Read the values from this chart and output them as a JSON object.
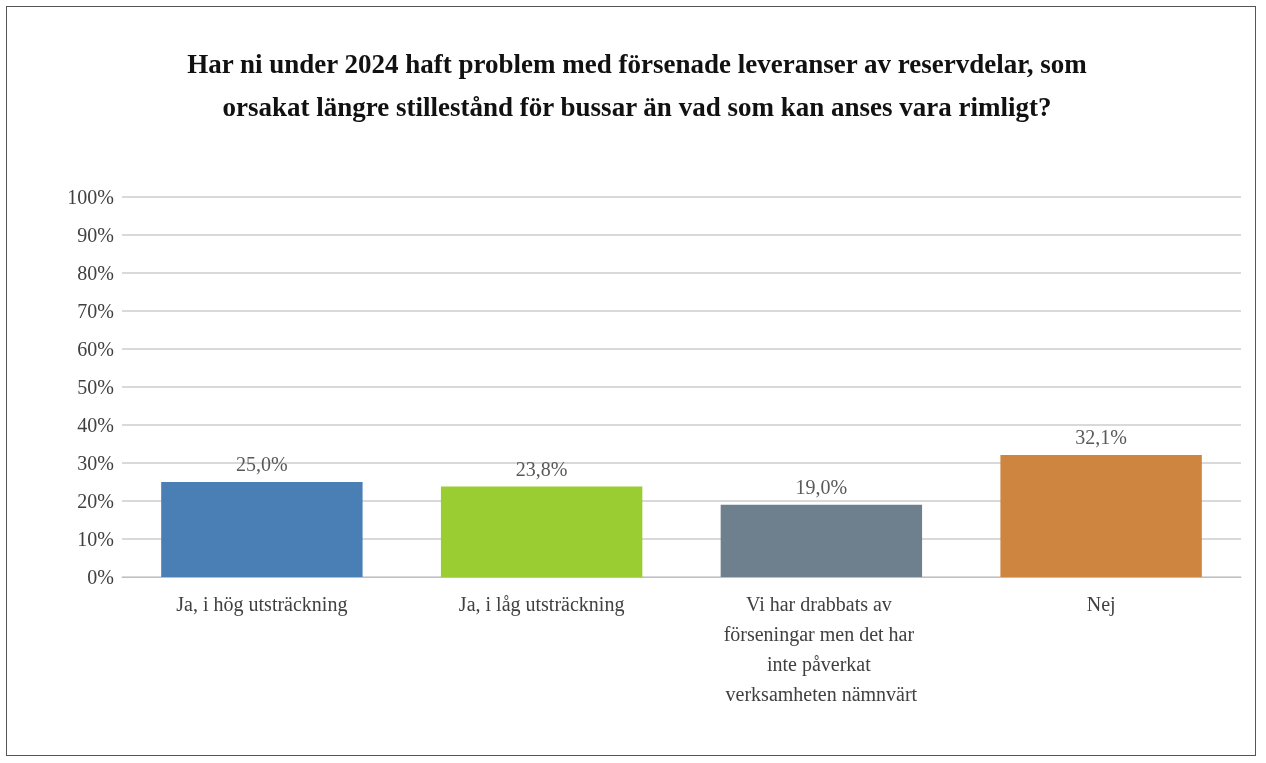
{
  "chart_data": {
    "type": "bar",
    "title": "Har ni under 2024 haft problem med försenade leveranser av reservdelar, som orsakat längre stillestånd för bussar än vad som kan anses vara rimligt?",
    "categories": [
      "Ja, i hög utsträckning",
      "Ja, i låg utsträckning",
      "Vi har drabbats av förseningar men det har inte påverkat verksamheten nämnvärt",
      "Nej"
    ],
    "values": [
      25.0,
      23.8,
      19.0,
      32.1
    ],
    "colors": [
      "#4a7fb5",
      "#9acd32",
      "#6e7f8e",
      "#cd853f"
    ],
    "value_labels": [
      "25,0%",
      "23,8%",
      "19,0%",
      "32,1%"
    ],
    "ylim": [
      0,
      100
    ],
    "yticks": [
      {
        "value": 0,
        "label": "0%"
      },
      {
        "value": 10,
        "label": "10%"
      },
      {
        "value": 20,
        "label": "20%"
      },
      {
        "value": 30,
        "label": "30%"
      },
      {
        "value": 40,
        "label": "40%"
      },
      {
        "value": 50,
        "label": "50%"
      },
      {
        "value": 60,
        "label": "60%"
      },
      {
        "value": 70,
        "label": "70%"
      },
      {
        "value": 80,
        "label": "80%"
      },
      {
        "value": 90,
        "label": "90%"
      },
      {
        "value": 100,
        "label": "100%"
      }
    ],
    "grid": "y"
  }
}
